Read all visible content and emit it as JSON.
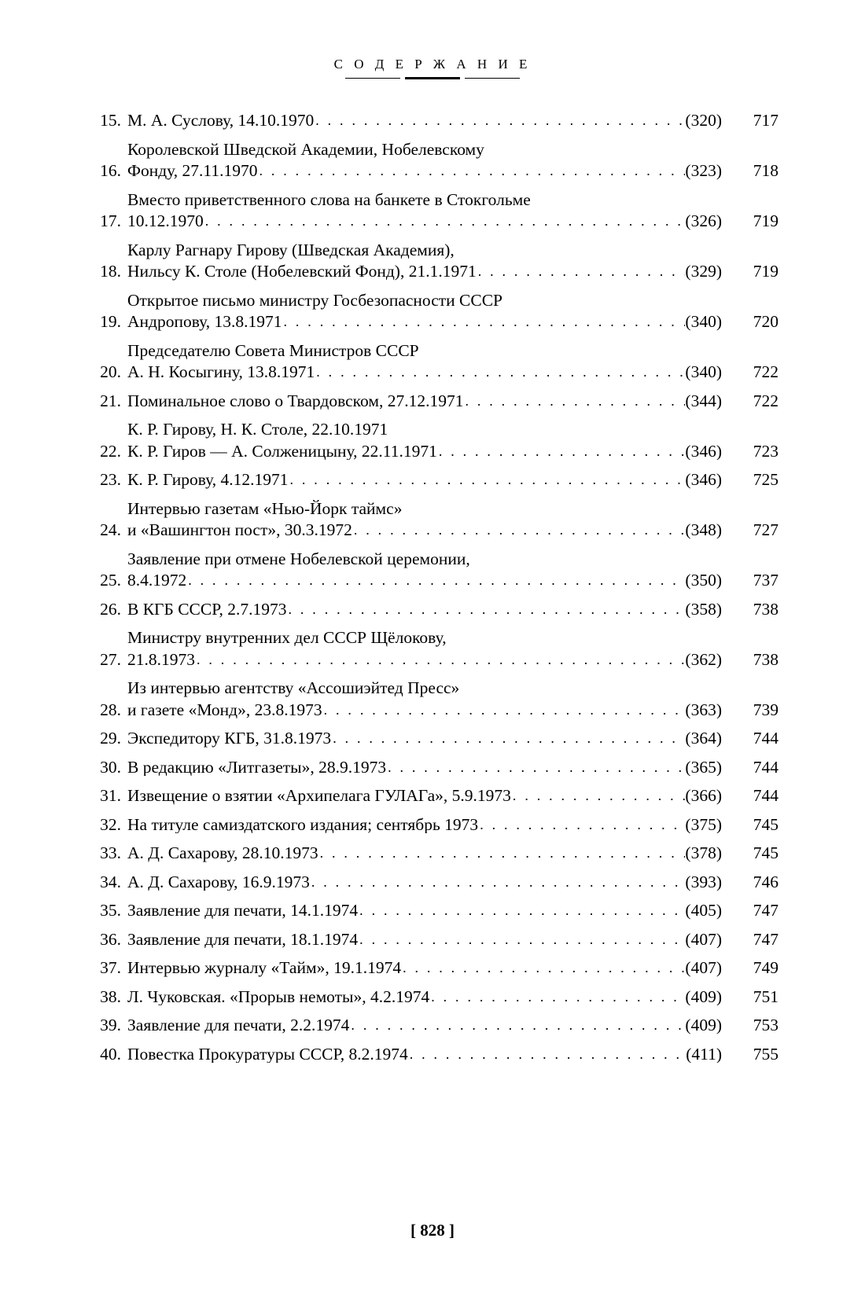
{
  "header": {
    "title": "С О Д Е Р Ж А Н И Е"
  },
  "footer": {
    "page": "[ 828 ]"
  },
  "entries": [
    {
      "n": "15.",
      "lines": [],
      "last": "М. А. Суслову, 14.10.1970",
      "p": "(320)",
      "pg": "717"
    },
    {
      "n": "16.",
      "lines": [
        "Королевской Шведской Академии, Нобелевскому"
      ],
      "last": "Фонду, 27.11.1970",
      "p": "(323)",
      "pg": "718"
    },
    {
      "n": "17.",
      "lines": [
        "Вместо приветственного слова на банкете в Стокгольме"
      ],
      "last": "10.12.1970",
      "p": "(326)",
      "pg": "719"
    },
    {
      "n": "18.",
      "lines": [
        "Карлу Рагнару Гирову (Шведская Академия),"
      ],
      "last": "Нильсу К. Столе (Нобелевский Фонд), 21.1.1971",
      "p": "(329)",
      "pg": "719"
    },
    {
      "n": "19.",
      "lines": [
        "Открытое письмо министру Госбезопасности СССР"
      ],
      "last": "Андропову, 13.8.1971",
      "p": "(340)",
      "pg": "720"
    },
    {
      "n": "20.",
      "lines": [
        "Председателю Совета Министров СССР"
      ],
      "last": "А. Н. Косыгину, 13.8.1971",
      "p": "(340)",
      "pg": "722"
    },
    {
      "n": "21.",
      "lines": [],
      "last": "Поминальное слово о Твардовском, 27.12.1971",
      "p": "(344)",
      "pg": "722"
    },
    {
      "n": "22.",
      "lines": [
        "К. Р. Гирову, Н. К. Столе, 22.10.1971"
      ],
      "last": "К. Р. Гиров — А. Солженицыну, 22.11.1971",
      "p": "(346)",
      "pg": "723"
    },
    {
      "n": "23.",
      "lines": [],
      "last": "К. Р. Гирову, 4.12.1971",
      "p": "(346)",
      "pg": "725"
    },
    {
      "n": "24.",
      "lines": [
        "Интервью газетам «Нью-Йорк таймс»"
      ],
      "last": "и «Вашингтон пост», 30.3.1972",
      "p": "(348)",
      "pg": "727"
    },
    {
      "n": "25.",
      "lines": [
        "Заявление при отмене Нобелевской церемонии,"
      ],
      "last": "8.4.1972",
      "p": "(350)",
      "pg": "737"
    },
    {
      "n": "26.",
      "lines": [],
      "last": "В КГБ СССР, 2.7.1973",
      "p": "(358)",
      "pg": "738"
    },
    {
      "n": "27.",
      "lines": [
        "Министру внутренних дел СССР Щёлокову,"
      ],
      "last": "21.8.1973",
      "p": "(362)",
      "pg": "738"
    },
    {
      "n": "28.",
      "lines": [
        "Из интервью агентству «Ассошиэйтед Пресс»"
      ],
      "last": "и газете «Монд», 23.8.1973",
      "p": "(363)",
      "pg": "739"
    },
    {
      "n": "29.",
      "lines": [],
      "last": "Экспедитору КГБ, 31.8.1973",
      "p": "(364)",
      "pg": "744"
    },
    {
      "n": "30.",
      "lines": [],
      "last": "В редакцию «Литгазеты», 28.9.1973",
      "p": "(365)",
      "pg": "744"
    },
    {
      "n": "31.",
      "lines": [],
      "last": "Извещение о взятии «Архипелага ГУЛАГа», 5.9.1973",
      "p": "(366)",
      "pg": "744"
    },
    {
      "n": "32.",
      "lines": [],
      "last": "На титуле самиздатского издания; сентябрь 1973",
      "p": "(375)",
      "pg": "745"
    },
    {
      "n": "33.",
      "lines": [],
      "last": "А. Д. Сахарову, 28.10.1973",
      "p": "(378)",
      "pg": "745"
    },
    {
      "n": "34.",
      "lines": [],
      "last": "А. Д. Сахарову, 16.9.1973",
      "p": "(393)",
      "pg": "746"
    },
    {
      "n": "35.",
      "lines": [],
      "last": "Заявление для печати, 14.1.1974",
      "p": "(405)",
      "pg": "747"
    },
    {
      "n": "36.",
      "lines": [],
      "last": "Заявление для печати, 18.1.1974",
      "p": "(407)",
      "pg": "747"
    },
    {
      "n": "37.",
      "lines": [],
      "last": "Интервью журналу «Тайм», 19.1.1974",
      "p": "(407)",
      "pg": "749"
    },
    {
      "n": "38.",
      "lines": [],
      "last": "Л. Чуковская. «Прорыв немоты», 4.2.1974",
      "p": "(409)",
      "pg": "751"
    },
    {
      "n": "39.",
      "lines": [],
      "last": "Заявление для печати, 2.2.1974",
      "p": "(409)",
      "pg": "753"
    },
    {
      "n": "40.",
      "lines": [],
      "last": "Повестка Прокуратуры СССР, 8.2.1974",
      "p": "(411)",
      "pg": "755"
    }
  ]
}
